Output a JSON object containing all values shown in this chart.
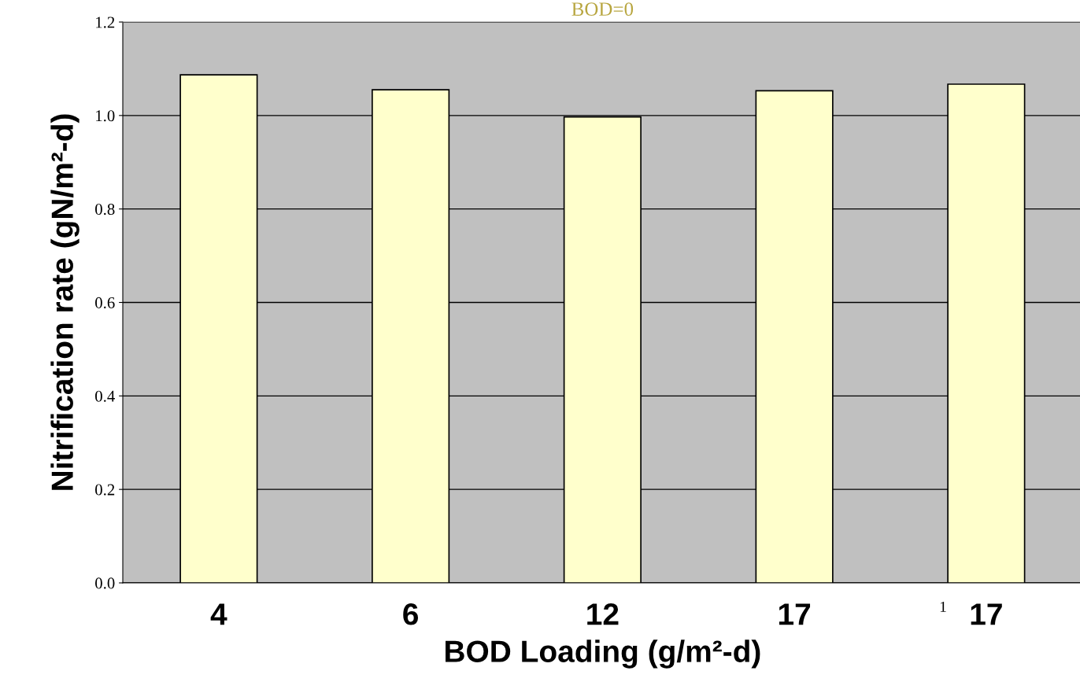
{
  "chart_data": {
    "type": "bar",
    "xlabel": "BOD Loading (g/m²-d)",
    "ylabel": "Nitrification rate (gN/m²-d)",
    "categories": [
      "4",
      "6",
      "12",
      "17",
      "17"
    ],
    "values": [
      1.087,
      1.055,
      0.997,
      1.053,
      1.067
    ],
    "color": "#ffffcc",
    "ylim": [
      0,
      1.2
    ],
    "yticks": [
      {
        "value": 0,
        "label": "0.0"
      },
      {
        "value": 0.2,
        "label": "0.2"
      },
      {
        "value": 0.4,
        "label": "0.4"
      },
      {
        "value": 0.6,
        "label": "0.6"
      },
      {
        "value": 0.8,
        "label": "0.8"
      },
      {
        "value": 1.0,
        "label": "1.0"
      },
      {
        "value": 1.2,
        "label": "1.2"
      }
    ],
    "grid": "y",
    "annotations": [
      "BOD=0",
      "1"
    ]
  }
}
